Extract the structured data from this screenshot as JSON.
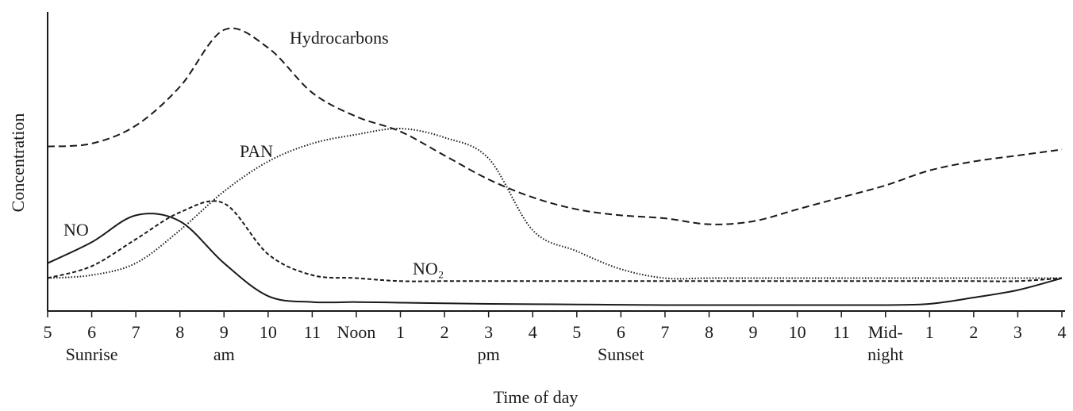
{
  "chart_data": {
    "type": "line",
    "x_label": "Time of day",
    "y_label": "Concentration",
    "categories": [
      "5",
      "6",
      "7",
      "8",
      "9",
      "10",
      "11",
      "Noon",
      "1",
      "2",
      "3",
      "4",
      "5",
      "6",
      "7",
      "8",
      "9",
      "10",
      "11",
      "Mid-",
      "1",
      "2",
      "3",
      "4"
    ],
    "sublabels": [
      null,
      "Sunrise",
      null,
      null,
      "am",
      null,
      null,
      null,
      null,
      null,
      "pm",
      null,
      null,
      "Sunset",
      null,
      null,
      null,
      null,
      null,
      "night",
      null,
      null,
      null,
      null
    ],
    "ylim": [
      0,
      100
    ],
    "color": "#1a1a1a",
    "series": [
      {
        "name": "Hydrocarbons",
        "dash": "long-dashed",
        "values": [
          55,
          56,
          62,
          75,
          94,
          88,
          73,
          65,
          60,
          52,
          44,
          38,
          34,
          32,
          31,
          29,
          30,
          34,
          38,
          42,
          47,
          50,
          52,
          54
        ]
      },
      {
        "name": "PAN",
        "dash": "dotted",
        "values": [
          11,
          12,
          16,
          27,
          40,
          50,
          56,
          59,
          61,
          58,
          51,
          27,
          20,
          14,
          11,
          11,
          11,
          11,
          11,
          11,
          11,
          11,
          11,
          11
        ]
      },
      {
        "name": "NO",
        "dash": "solid",
        "values": [
          16,
          23,
          32,
          30,
          16,
          5,
          3,
          3,
          2.8,
          2.6,
          2.4,
          2.3,
          2.2,
          2.1,
          2,
          2,
          2,
          2,
          2,
          2,
          2.4,
          4.5,
          7,
          11
        ]
      },
      {
        "name": "NO₂",
        "dash": "short-dashed",
        "values": [
          11,
          15,
          24,
          33,
          36,
          19,
          12,
          11,
          10,
          10,
          10,
          10,
          10,
          10,
          10,
          10,
          10,
          10,
          10,
          10,
          10,
          10,
          10,
          11
        ]
      }
    ]
  }
}
